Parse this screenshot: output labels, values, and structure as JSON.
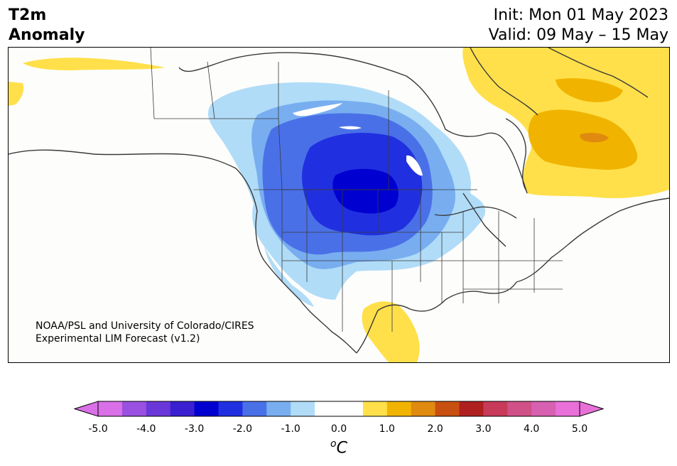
{
  "header": {
    "title_line1": "T2m",
    "title_line2": "Anomaly",
    "init_label": "Init: Mon 01 May 2023",
    "valid_label": "Valid: 09 May – 15 May"
  },
  "credit": {
    "line1": "NOAA/PSL and University of Colorado/CIRES",
    "line2": "Experimental LIM Forecast (v1.2)"
  },
  "colorbar": {
    "ticks": [
      "-5.0",
      "-4.0",
      "-3.0",
      "-2.0",
      "-1.0",
      "0.0",
      "1.0",
      "2.0",
      "3.0",
      "4.0",
      "5.0"
    ],
    "unit_base": "C",
    "unit_super": "o",
    "colors": [
      "#da70e8",
      "#9a50e0",
      "#6a38d8",
      "#3a20d0",
      "#0000d0",
      "#2030e0",
      "#4a70e8",
      "#78aef0",
      "#b0dcf8",
      "#ffffff",
      "#ffffff",
      "#ffe04a",
      "#f0b400",
      "#e08a10",
      "#c85010",
      "#b02020",
      "#c83a5a",
      "#d05088",
      "#d860b0",
      "#e870d8"
    ],
    "min_color": "#da70e8",
    "max_color": "#e870d8"
  },
  "map": {
    "region": "North America",
    "colors": {
      "cold_1": "#b0dcf8",
      "cold_2": "#78aef0",
      "cold_3": "#4a70e8",
      "cold_4": "#2030e0",
      "cold_5": "#0000d0",
      "warm_1": "#ffe04a",
      "warm_2": "#f0b400",
      "warm_3": "#e08a10",
      "coast": "#3a3a3a"
    }
  }
}
